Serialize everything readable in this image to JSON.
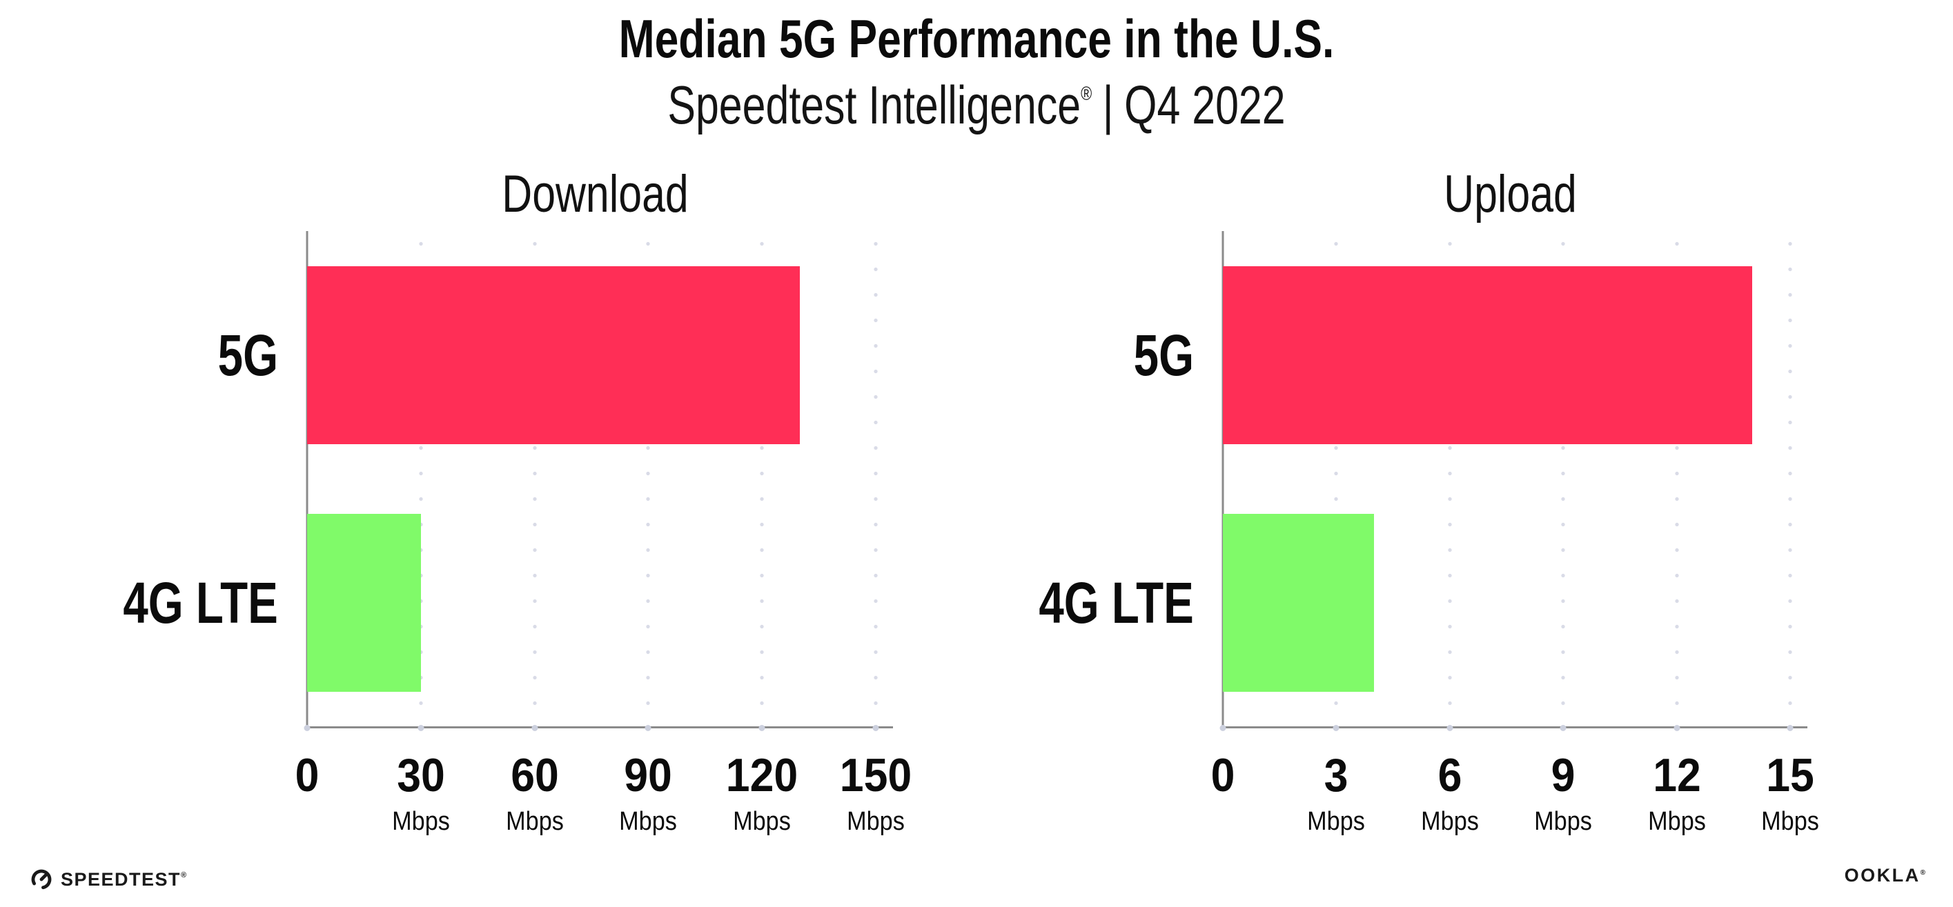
{
  "header": {
    "title": "Median 5G Performance in the U.S.",
    "subtitle_brand": "Speedtest Intelligence",
    "subtitle_reg": "®",
    "subtitle_divider": "|",
    "subtitle_period": "Q4 2022"
  },
  "chart_data": [
    {
      "type": "bar",
      "orientation": "horizontal",
      "title": "Download",
      "categories": [
        "5G",
        "4G LTE"
      ],
      "values": [
        130,
        30
      ],
      "unit": "Mbps",
      "xlim": [
        0,
        152
      ],
      "xticks": [
        0,
        30,
        60,
        90,
        120,
        150
      ],
      "bar_colors": [
        "#ff2e56",
        "#80fa69"
      ],
      "grid": "dotted-vertical",
      "legend": false
    },
    {
      "type": "bar",
      "orientation": "horizontal",
      "title": "Upload",
      "categories": [
        "5G",
        "4G LTE"
      ],
      "values": [
        14,
        4
      ],
      "unit": "Mbps",
      "xlim": [
        0,
        15.2
      ],
      "xticks": [
        0,
        3,
        6,
        9,
        12,
        15
      ],
      "bar_colors": [
        "#ff2e56",
        "#80fa69"
      ],
      "grid": "dotted-vertical",
      "legend": false
    }
  ],
  "colors": {
    "bar_5g": "#ff2e56",
    "bar_4g_lte": "#80fa69",
    "axis_line": "#8b8b8b",
    "grid_dot": "#d9dbe7",
    "text": "#0b0b0b"
  },
  "footer": {
    "speedtest_label": "SPEEDTEST",
    "speedtest_reg": "®",
    "ookla_label": "OOKLA",
    "ookla_reg": "®"
  }
}
